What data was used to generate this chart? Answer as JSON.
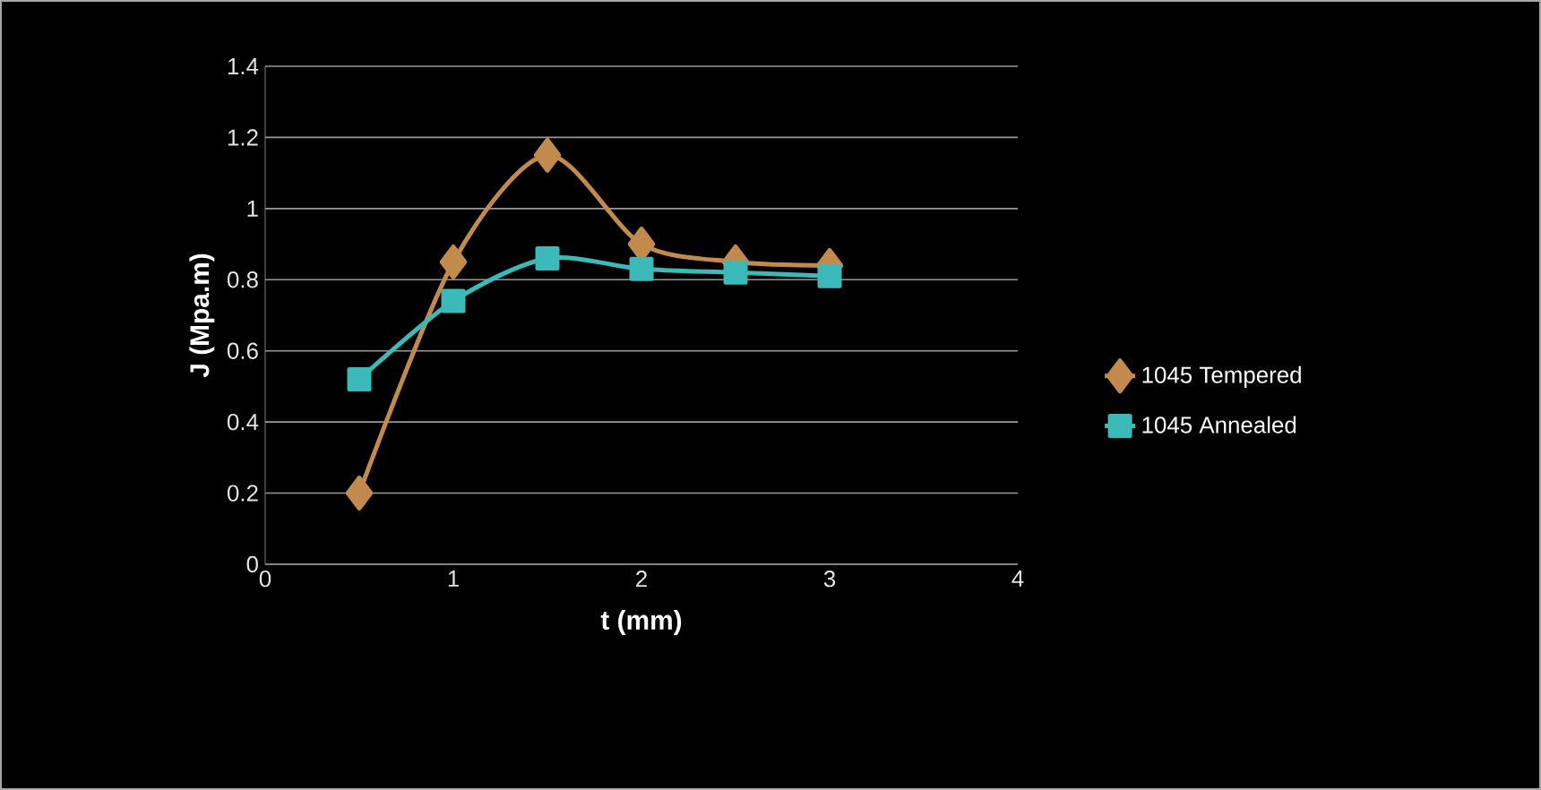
{
  "chart_data": {
    "type": "line",
    "xlabel": "t (mm)",
    "ylabel": "J (Mpa.m)",
    "x": [
      0.5,
      1,
      1.5,
      2,
      2.5,
      3
    ],
    "series": [
      {
        "name": "1045 Tempered",
        "color": "#c28a4c",
        "marker": "diamond",
        "values": [
          0.2,
          0.85,
          1.15,
          0.9,
          0.85,
          0.84
        ]
      },
      {
        "name": "1045 Annealed",
        "color": "#3cb9b9",
        "marker": "square",
        "values": [
          0.52,
          0.74,
          0.86,
          0.83,
          0.82,
          0.81
        ]
      }
    ],
    "xlim": [
      0,
      4
    ],
    "xticks": [
      0,
      1,
      2,
      3,
      4
    ],
    "ylim": [
      0,
      1.4
    ],
    "yticks": [
      0,
      0.2,
      0.4,
      0.6,
      0.8,
      1,
      1.2,
      1.4
    ],
    "grid": "y",
    "legend": "right",
    "line_style": "solid"
  }
}
